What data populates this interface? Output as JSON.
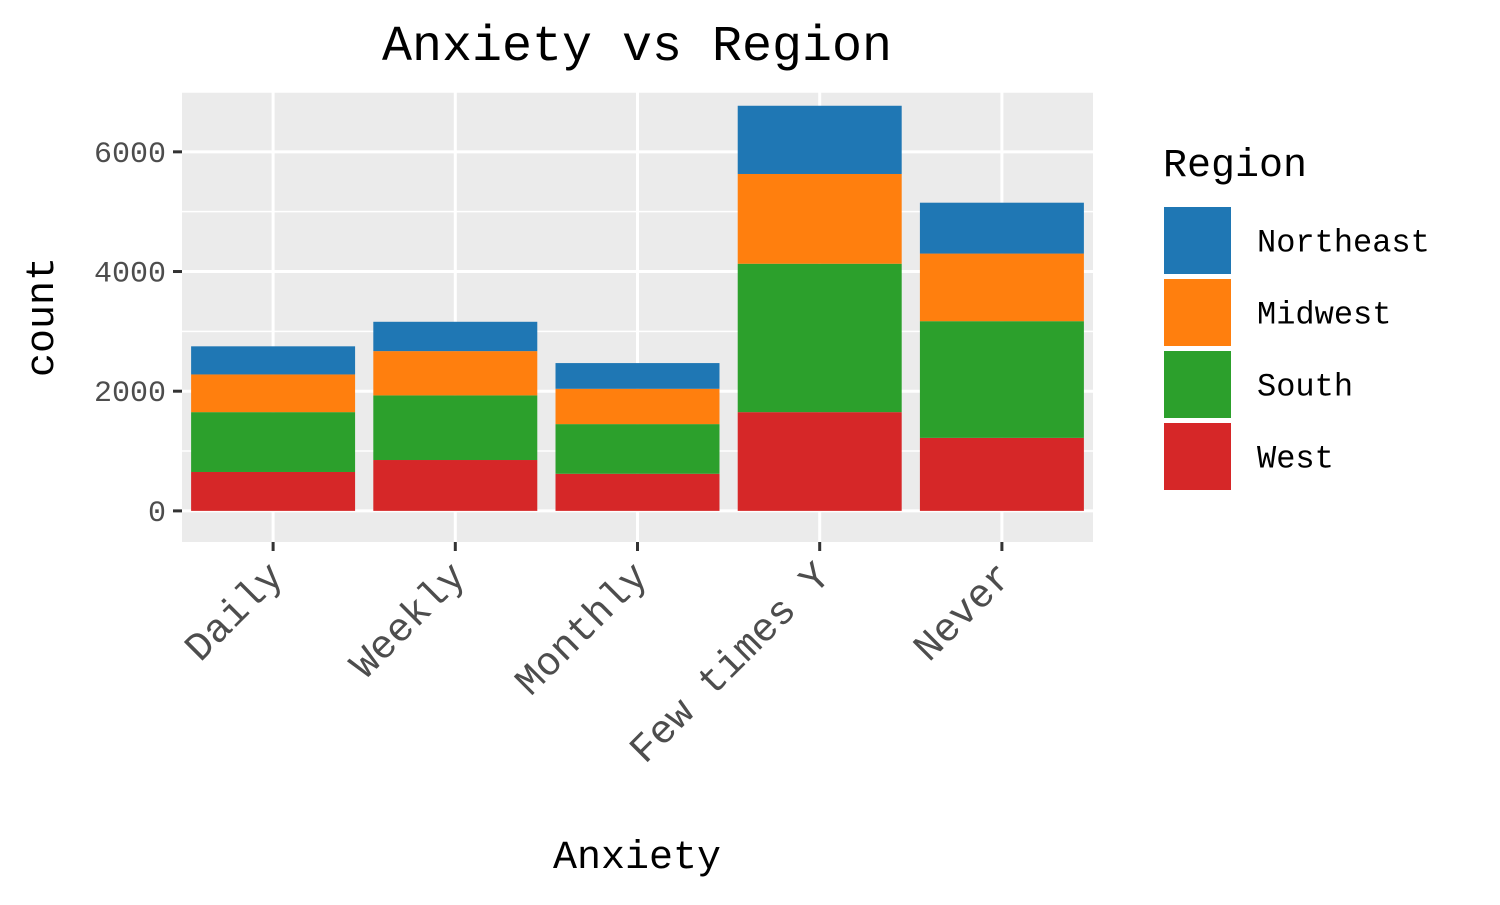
{
  "chart_data": {
    "type": "bar",
    "stacked": true,
    "title": "Anxiety vs Region",
    "xlabel": "Anxiety",
    "ylabel": "count",
    "categories": [
      "Daily",
      "Weekly",
      "Monthly",
      "Few times Y",
      "Never"
    ],
    "ylim": [
      -520,
      7000
    ],
    "yticks": [
      0,
      2000,
      4000,
      6000
    ],
    "grid": true,
    "legend": {
      "title": "Region",
      "position": "right"
    },
    "series": [
      {
        "name": "West",
        "color": "#d62728",
        "values": [
          650,
          850,
          620,
          1650,
          1220
        ]
      },
      {
        "name": "South",
        "color": "#2ca02c",
        "values": [
          1000,
          1080,
          830,
          2480,
          1950
        ]
      },
      {
        "name": "Midwest",
        "color": "#ff7f0e",
        "values": [
          630,
          740,
          590,
          1500,
          1130
        ]
      },
      {
        "name": "Northeast",
        "color": "#1f77b4",
        "values": [
          470,
          490,
          430,
          1140,
          850
        ]
      }
    ],
    "legend_order": [
      "Northeast",
      "Midwest",
      "South",
      "West"
    ]
  }
}
